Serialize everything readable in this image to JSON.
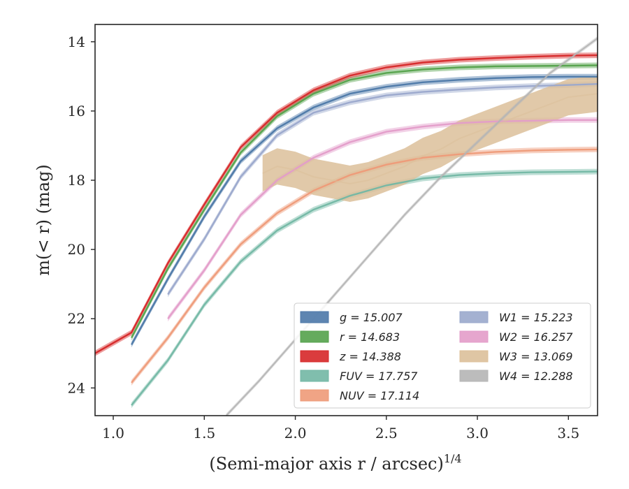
{
  "chart_data": {
    "type": "line",
    "xlabel": "(Semi-major axis r / arcsec)",
    "xlabel_exponent": "1/4",
    "ylabel": "m(< r) (mag)",
    "xlim": [
      0.9,
      3.66
    ],
    "ylim": [
      24.8,
      13.5
    ],
    "y_inverted": true,
    "x_ticks": [
      "1.0",
      "1.5",
      "2.0",
      "2.5",
      "3.0",
      "3.5"
    ],
    "y_ticks": [
      "14",
      "16",
      "18",
      "20",
      "22",
      "24"
    ],
    "grid": false,
    "legend_position": "lower-right",
    "series": [
      {
        "name": "g = 15.007",
        "color": "#4c78a8",
        "x": [
          1.1,
          1.3,
          1.5,
          1.7,
          1.9,
          2.1,
          2.3,
          2.5,
          2.7,
          2.9,
          3.1,
          3.3,
          3.5,
          3.66
        ],
        "y": [
          22.75,
          20.85,
          19.05,
          17.45,
          16.5,
          15.9,
          15.5,
          15.3,
          15.17,
          15.1,
          15.05,
          15.02,
          15.01,
          15.01
        ]
      },
      {
        "name": "r = 14.683",
        "color": "#54a24b",
        "x": [
          1.1,
          1.3,
          1.5,
          1.7,
          1.9,
          2.1,
          2.3,
          2.5,
          2.7,
          2.9,
          3.1,
          3.3,
          3.5,
          3.66
        ],
        "y": [
          22.55,
          20.55,
          18.85,
          17.2,
          16.15,
          15.5,
          15.1,
          14.9,
          14.8,
          14.74,
          14.71,
          14.7,
          14.69,
          14.68
        ]
      },
      {
        "name": "z = 14.388",
        "color": "#d62728",
        "x": [
          0.9,
          1.1,
          1.3,
          1.5,
          1.7,
          1.9,
          2.1,
          2.3,
          2.5,
          2.7,
          2.9,
          3.1,
          3.3,
          3.5,
          3.66
        ],
        "y": [
          23.0,
          22.4,
          20.4,
          18.7,
          17.05,
          16.05,
          15.4,
          14.98,
          14.74,
          14.6,
          14.52,
          14.47,
          14.43,
          14.4,
          14.39
        ]
      },
      {
        "name": "FUV = 17.757",
        "color": "#72b7a4",
        "x": [
          1.1,
          1.3,
          1.5,
          1.7,
          1.9,
          2.1,
          2.3,
          2.5,
          2.7,
          2.9,
          3.1,
          3.3,
          3.5,
          3.66
        ],
        "y": [
          24.5,
          23.2,
          21.6,
          20.35,
          19.45,
          18.85,
          18.45,
          18.15,
          17.95,
          17.85,
          17.8,
          17.77,
          17.76,
          17.75
        ]
      },
      {
        "name": "NUV = 17.114",
        "color": "#ee9a78",
        "x": [
          1.1,
          1.3,
          1.5,
          1.7,
          1.9,
          2.1,
          2.3,
          2.5,
          2.7,
          2.9,
          3.1,
          3.3,
          3.5,
          3.66
        ],
        "y": [
          23.85,
          22.55,
          21.1,
          19.85,
          18.95,
          18.3,
          17.85,
          17.55,
          17.35,
          17.25,
          17.18,
          17.14,
          17.12,
          17.11
        ]
      },
      {
        "name": "W1 = 15.223",
        "color": "#9aa8cc",
        "x": [
          1.3,
          1.5,
          1.7,
          1.9,
          2.1,
          2.3,
          2.5,
          2.7,
          2.9,
          3.1,
          3.3,
          3.5,
          3.66
        ],
        "y": [
          21.3,
          19.7,
          17.9,
          16.7,
          16.05,
          15.75,
          15.55,
          15.45,
          15.38,
          15.32,
          15.28,
          15.25,
          15.22
        ]
      },
      {
        "name": "W2 = 16.257",
        "color": "#e39cc9",
        "x": [
          1.3,
          1.5,
          1.7,
          1.9,
          2.1,
          2.3,
          2.5,
          2.7,
          2.9,
          3.1,
          3.3,
          3.5,
          3.66
        ],
        "y": [
          22.0,
          20.6,
          19.0,
          18.0,
          17.35,
          16.9,
          16.6,
          16.45,
          16.35,
          16.3,
          16.28,
          16.26,
          16.26
        ]
      },
      {
        "name": "W3 = 13.069",
        "color": "#dcc09a",
        "x": [
          1.82,
          1.9,
          2.0,
          2.1,
          2.2,
          2.3,
          2.4,
          2.5,
          2.6,
          2.7,
          2.8,
          2.9,
          3.0,
          3.1,
          3.2,
          3.3,
          3.4,
          3.5,
          3.66
        ],
        "y": [
          17.8,
          17.6,
          17.7,
          17.9,
          18.0,
          18.1,
          18.0,
          17.8,
          17.6,
          17.3,
          17.1,
          16.8,
          16.6,
          16.4,
          16.2,
          16.0,
          15.8,
          15.6,
          15.5
        ]
      },
      {
        "name": "W4 = 12.288",
        "color": "#b5b5b5",
        "x": [
          1.62,
          1.8,
          2.0,
          2.2,
          2.4,
          2.6,
          2.8,
          3.0,
          3.2,
          3.4,
          3.66
        ],
        "y": [
          24.8,
          23.8,
          22.6,
          21.4,
          20.2,
          19.0,
          17.9,
          16.9,
          15.9,
          14.9,
          13.9
        ]
      }
    ]
  }
}
